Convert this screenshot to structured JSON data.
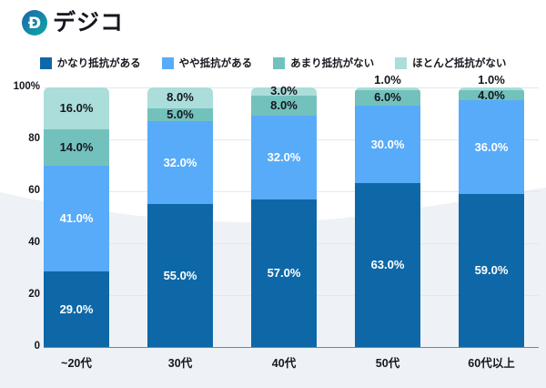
{
  "brand": {
    "name": "デジコ"
  },
  "colors": {
    "background_wave": "#eef2f7",
    "grid_line": "#e4e8ed",
    "axis_line": "#7a828c",
    "label_dark": "#16161e",
    "label_light": "#ffffff",
    "logo_gradient_start": "#1c64b0",
    "logo_gradient_end": "#0caaa0"
  },
  "chart_data": {
    "type": "bar",
    "variant": "stacked-percent",
    "title": "",
    "categories": [
      "~20代",
      "30代",
      "40代",
      "50代",
      "60代以上"
    ],
    "series": [
      {
        "name": "かなり抵抗がある",
        "color": "#0e68a8",
        "label_color": "#ffffff",
        "values": [
          29,
          55,
          57,
          63,
          59
        ]
      },
      {
        "name": "やや抵抗がある",
        "color": "#58abf8",
        "label_color": "#ffffff",
        "values": [
          41,
          32,
          32,
          30,
          36
        ]
      },
      {
        "name": "あまり抵抗がない",
        "color": "#73c1bd",
        "label_color": "#16161e",
        "values": [
          14,
          5,
          8,
          6,
          4
        ]
      },
      {
        "name": "ほとんど抵抗がない",
        "color": "#abdeda",
        "label_color": "#16161e",
        "values": [
          16,
          8,
          3,
          1,
          1
        ]
      }
    ],
    "y_ticks": [
      {
        "value": 100,
        "label": "100%"
      },
      {
        "value": 80,
        "label": "80"
      },
      {
        "value": 60,
        "label": "60"
      },
      {
        "value": 40,
        "label": "40"
      },
      {
        "value": 20,
        "label": "20"
      },
      {
        "value": 0,
        "label": "0"
      }
    ],
    "ylim": [
      0,
      100
    ],
    "grid": true,
    "legend_position": "top",
    "value_label_format": "{value:.1f}%"
  }
}
